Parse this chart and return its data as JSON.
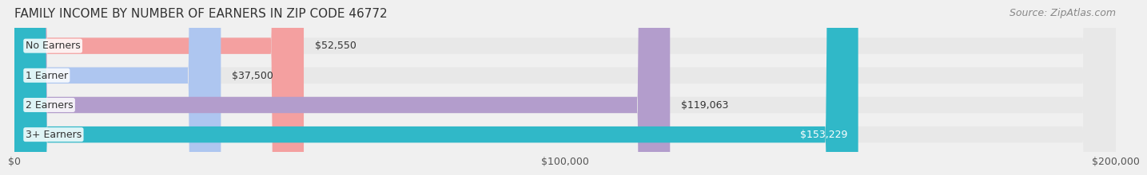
{
  "title": "FAMILY INCOME BY NUMBER OF EARNERS IN ZIP CODE 46772",
  "source": "Source: ZipAtlas.com",
  "categories": [
    "No Earners",
    "1 Earner",
    "2 Earners",
    "3+ Earners"
  ],
  "values": [
    52550,
    37500,
    119063,
    153229
  ],
  "bar_colors": [
    "#f4a0a0",
    "#aec6f0",
    "#b39dcc",
    "#30b8c8"
  ],
  "label_colors": [
    "#555555",
    "#555555",
    "#555555",
    "#ffffff"
  ],
  "value_labels": [
    "$52,550",
    "$37,500",
    "$119,063",
    "$153,229"
  ],
  "xlim": [
    0,
    200000
  ],
  "xticks": [
    0,
    100000,
    200000
  ],
  "xtick_labels": [
    "$0",
    "$100,000",
    "$200,000"
  ],
  "bar_height": 0.55,
  "background_color": "#f0f0f0",
  "bar_bg_color": "#e8e8e8",
  "title_fontsize": 11,
  "source_fontsize": 9,
  "label_fontsize": 9,
  "value_fontsize": 9
}
